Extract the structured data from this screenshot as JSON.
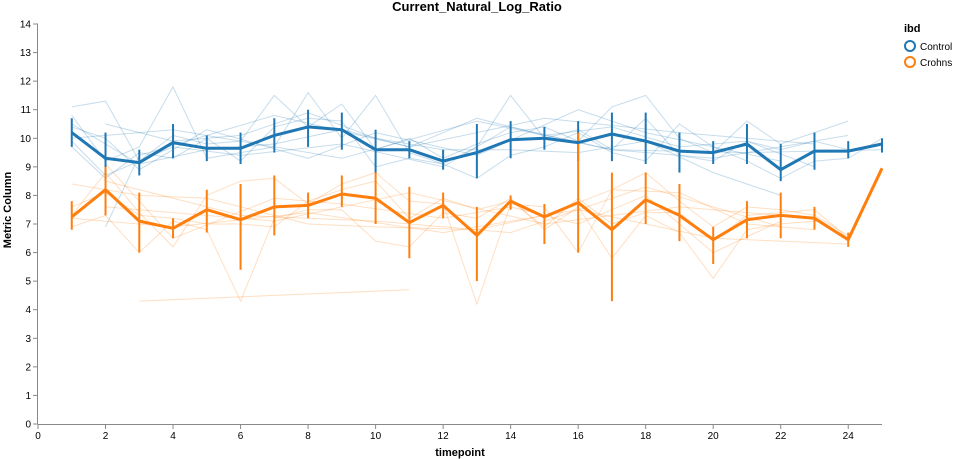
{
  "chart_data": {
    "type": "line",
    "title": "Current_Natural_Log_Ratio",
    "xlabel": "timepoint",
    "ylabel": "Metric Column",
    "xlim": [
      0,
      25
    ],
    "ylim": [
      0,
      14
    ],
    "x_ticks": [
      "0",
      "2",
      "4",
      "6",
      "8",
      "10",
      "12",
      "14",
      "16",
      "18",
      "20",
      "22",
      "24"
    ],
    "y_ticks": [
      "0",
      "1",
      "2",
      "3",
      "4",
      "5",
      "6",
      "7",
      "8",
      "9",
      "10",
      "11",
      "12",
      "13",
      "14"
    ],
    "grid": false,
    "legend": {
      "title": "ibd",
      "placement": "top-right",
      "items": [
        "Control",
        "Crohns"
      ]
    },
    "colors": {
      "Control": "#1f77b4",
      "Crohns": "#ff7f0e"
    },
    "series": [
      {
        "name": "Control",
        "x": [
          1,
          2,
          3,
          4,
          5,
          6,
          7,
          8,
          9,
          10,
          11,
          12,
          13,
          14,
          15,
          16,
          17,
          18,
          19,
          20,
          21,
          22,
          23,
          24,
          25
        ],
        "mean": [
          10.2,
          9.3,
          9.15,
          9.85,
          9.65,
          9.65,
          10.1,
          10.4,
          10.3,
          9.6,
          9.6,
          9.2,
          9.5,
          9.95,
          10.0,
          9.85,
          10.15,
          9.9,
          9.55,
          9.5,
          9.8,
          8.9,
          9.55,
          9.55,
          9.8
        ],
        "ci_low": [
          9.7,
          8.5,
          8.7,
          9.3,
          9.2,
          9.1,
          9.5,
          9.7,
          9.6,
          8.8,
          9.3,
          8.9,
          8.6,
          9.3,
          9.6,
          9.2,
          9.2,
          9.1,
          8.8,
          9.1,
          9.1,
          8.5,
          8.9,
          9.3,
          9.5
        ],
        "ci_high": [
          10.7,
          10.2,
          9.6,
          10.5,
          10.1,
          10.2,
          10.7,
          11.0,
          10.9,
          10.3,
          9.9,
          9.6,
          10.5,
          10.6,
          10.4,
          10.6,
          10.9,
          10.9,
          10.2,
          9.9,
          10.5,
          9.8,
          10.2,
          9.9,
          10.0
        ]
      },
      {
        "name": "Crohns",
        "x": [
          1,
          2,
          3,
          4,
          5,
          6,
          7,
          8,
          9,
          10,
          11,
          12,
          13,
          14,
          15,
          16,
          17,
          18,
          19,
          20,
          21,
          22,
          23,
          24,
          25
        ],
        "mean": [
          7.25,
          8.2,
          7.1,
          6.85,
          7.5,
          7.15,
          7.6,
          7.65,
          8.05,
          7.9,
          7.05,
          7.65,
          6.6,
          7.8,
          7.25,
          7.75,
          6.8,
          7.85,
          7.3,
          6.45,
          7.15,
          7.3,
          7.2,
          6.45,
          8.95
        ],
        "ci_low": [
          6.8,
          7.3,
          6.0,
          6.5,
          6.7,
          5.4,
          6.6,
          7.2,
          7.6,
          7.0,
          5.8,
          7.2,
          5.0,
          7.5,
          6.3,
          6.0,
          4.3,
          7.0,
          6.4,
          5.6,
          6.5,
          6.5,
          6.8,
          6.2,
          8.95
        ],
        "ci_high": [
          7.8,
          9.0,
          8.1,
          7.2,
          8.2,
          8.4,
          8.7,
          8.1,
          8.7,
          8.8,
          8.3,
          8.1,
          7.6,
          8.0,
          7.7,
          10.2,
          8.8,
          8.8,
          8.4,
          6.9,
          7.8,
          8.1,
          7.6,
          6.7,
          8.95
        ]
      }
    ],
    "subjects": [
      {
        "group": "Control",
        "x": [
          1,
          2,
          3,
          4,
          5,
          6,
          7,
          8,
          9,
          10,
          11,
          12,
          13,
          14,
          15,
          16,
          17,
          18,
          19,
          20,
          21,
          22,
          23,
          24
        ],
        "y": [
          11.1,
          11.3,
          9.2,
          10.1,
          9.8,
          9.9,
          11.5,
          10.4,
          11.2,
          9.6,
          10.0,
          9.3,
          9.8,
          10.2,
          10.4,
          9.9,
          11.1,
          11.5,
          10.0,
          9.5,
          10.6,
          9.8,
          10.2,
          10.6
        ]
      },
      {
        "group": "Control",
        "x": [
          1,
          2,
          3,
          4,
          5,
          6,
          7,
          8,
          9,
          10,
          11,
          12,
          13,
          14,
          15,
          16,
          17,
          18,
          19,
          20,
          21,
          22,
          23,
          24
        ],
        "y": [
          10.8,
          9.2,
          9.7,
          11.8,
          9.3,
          9.5,
          9.7,
          11.6,
          10.0,
          11.5,
          9.5,
          9.1,
          9.7,
          11.5,
          10.0,
          10.3,
          9.6,
          10.7,
          9.4,
          9.2,
          9.9,
          9.6,
          9.9,
          9.6
        ]
      },
      {
        "group": "Control",
        "x": [
          1,
          2,
          3,
          4,
          5,
          6,
          7,
          8,
          9,
          10,
          11,
          12,
          13,
          14,
          15,
          16,
          17,
          18,
          19,
          20,
          21,
          22,
          23,
          24,
          25
        ],
        "y": [
          9.7,
          8.6,
          9.5,
          9.3,
          10.0,
          9.2,
          10.4,
          10.7,
          10.6,
          9.0,
          9.3,
          9.1,
          8.6,
          9.4,
          9.7,
          10.2,
          9.5,
          9.2,
          10.5,
          9.7,
          9.2,
          8.6,
          9.2,
          9.3,
          10.0
        ]
      },
      {
        "group": "Control",
        "x": [
          1,
          3,
          5,
          7,
          9,
          11,
          13,
          15,
          17,
          19,
          21,
          23
        ],
        "y": [
          10.5,
          9.1,
          9.6,
          9.8,
          10.3,
          9.7,
          10.7,
          10.1,
          10.4,
          9.7,
          9.9,
          9.0
        ]
      },
      {
        "group": "Control",
        "x": [
          2,
          4,
          6,
          8,
          10,
          12,
          14,
          16,
          18,
          20,
          22
        ],
        "y": [
          10.5,
          9.9,
          10.1,
          10.9,
          10.0,
          9.6,
          9.6,
          9.5,
          9.9,
          8.8,
          8.0
        ]
      },
      {
        "group": "Control",
        "x": [
          1,
          2,
          4,
          6,
          9,
          12,
          14,
          17,
          20,
          24
        ],
        "y": [
          9.9,
          8.7,
          9.7,
          9.4,
          9.8,
          9.0,
          10.4,
          9.6,
          9.3,
          10.1
        ]
      },
      {
        "group": "Control",
        "x": [
          1,
          2,
          3,
          5,
          8,
          10,
          13,
          16,
          18,
          22
        ],
        "y": [
          10.4,
          10.0,
          8.9,
          10.3,
          9.3,
          10.2,
          9.4,
          11.0,
          10.2,
          9.2
        ]
      },
      {
        "group": "Control",
        "x": [
          2,
          3,
          7,
          11,
          15,
          19,
          23
        ],
        "y": [
          6.9,
          9.4,
          10.8,
          9.7,
          10.7,
          10.2,
          9.8
        ]
      },
      {
        "group": "Control",
        "x": [
          1,
          4,
          9,
          13,
          17,
          21,
          25
        ],
        "y": [
          10.0,
          10.3,
          9.3,
          10.6,
          9.6,
          9.5,
          9.6
        ]
      },
      {
        "group": "Crohns",
        "x": [
          1,
          2,
          3,
          4,
          5,
          6,
          7,
          8,
          9,
          10,
          11,
          12,
          13,
          14,
          15,
          16,
          17,
          18,
          19,
          20,
          21,
          22,
          23,
          24
        ],
        "y": [
          7.3,
          8.8,
          7.4,
          6.2,
          8.0,
          8.5,
          8.6,
          7.7,
          8.4,
          8.8,
          7.8,
          7.7,
          4.2,
          7.7,
          7.6,
          6.0,
          8.2,
          8.8,
          7.8,
          6.9,
          7.6,
          7.5,
          7.3,
          6.6
        ]
      },
      {
        "group": "Crohns",
        "x": [
          1,
          2,
          3,
          4,
          5,
          6,
          7,
          8,
          9,
          10,
          11,
          12,
          13,
          14,
          15,
          16,
          17,
          18,
          19,
          20,
          21,
          22,
          23
        ],
        "y": [
          6.9,
          7.3,
          6.0,
          7.1,
          6.8,
          4.3,
          7.2,
          7.5,
          7.5,
          6.4,
          6.2,
          7.4,
          7.2,
          7.9,
          6.8,
          7.6,
          5.8,
          7.3,
          6.7,
          5.1,
          6.8,
          7.0,
          7.1
        ]
      },
      {
        "group": "Crohns",
        "x": [
          1,
          2,
          3,
          4,
          5,
          6,
          7,
          8,
          9,
          10,
          11,
          12,
          13,
          14,
          15,
          16,
          17,
          18,
          19,
          20,
          21,
          22,
          23,
          24
        ],
        "y": [
          7.6,
          8.1,
          7.3,
          7.2,
          7.0,
          7.0,
          6.9,
          7.8,
          8.2,
          8.5,
          7.2,
          7.9,
          7.5,
          7.8,
          6.9,
          7.9,
          7.0,
          7.4,
          7.4,
          6.4,
          7.3,
          7.4,
          7.5,
          6.5
        ]
      },
      {
        "group": "Crohns",
        "x": [
          1,
          3,
          5,
          8,
          10,
          13,
          15,
          17,
          19,
          21,
          23
        ],
        "y": [
          8.4,
          8.0,
          7.9,
          7.0,
          6.9,
          6.8,
          7.3,
          8.2,
          8.1,
          7.0,
          6.8
        ]
      },
      {
        "group": "Crohns",
        "x": [
          2,
          4,
          7,
          9,
          12,
          14,
          16,
          18,
          20,
          22
        ],
        "y": [
          9.1,
          6.5,
          7.9,
          7.7,
          7.2,
          7.6,
          7.0,
          8.0,
          6.0,
          7.1
        ]
      },
      {
        "group": "Crohns",
        "x": [
          1,
          4,
          8,
          12,
          16,
          20,
          24
        ],
        "y": [
          7.2,
          6.9,
          7.4,
          6.7,
          7.5,
          6.5,
          6.3
        ]
      },
      {
        "group": "Crohns",
        "x": [
          2,
          6,
          10,
          14,
          18,
          22
        ],
        "y": [
          8.5,
          7.3,
          7.1,
          6.7,
          8.3,
          6.9
        ]
      },
      {
        "group": "Crohns",
        "x": [
          3,
          11
        ],
        "y": [
          4.3,
          4.7
        ]
      },
      {
        "group": "Crohns",
        "x": [
          2,
          7,
          11,
          15,
          19,
          23
        ],
        "y": [
          7.6,
          7.1,
          8.1,
          7.0,
          7.6,
          7.2
        ]
      }
    ]
  }
}
